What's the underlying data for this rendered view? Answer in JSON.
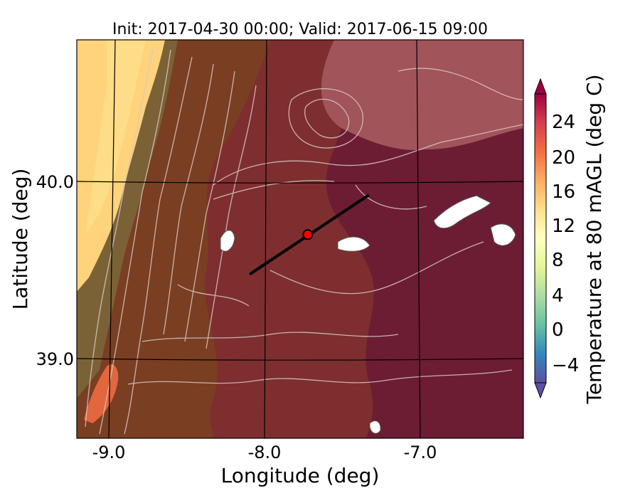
{
  "figure": {
    "title": "Init: 2017-04-30 00:00; Valid: 2017-06-15 09:00",
    "xlabel": "Longitude (deg)",
    "ylabel": "Latitude (deg)",
    "x_ticks": [
      "-9.0",
      "-8.0",
      "-7.0"
    ],
    "y_ticks": [
      "40.0",
      "39.0"
    ],
    "colorbar_label": "Temperature at 80 mAGL (deg C)",
    "colorbar_ticks": [
      "24",
      "20",
      "16",
      "12",
      "8",
      "4",
      "0",
      "−4"
    ]
  },
  "map_data": {
    "type": "filled-contour-map",
    "variable": "Temperature at 80 mAGL",
    "units": "deg C",
    "lon_range": [
      -9.25,
      -6.35
    ],
    "lat_range": [
      38.55,
      40.8
    ],
    "graticule_lon": [
      -9.0,
      -8.0,
      -7.0
    ],
    "graticule_lat": [
      40.0,
      39.0
    ],
    "color_range": [
      -6,
      28
    ],
    "colorbar_extend": "both",
    "marker": {
      "lon": -7.75,
      "lat": 39.7,
      "color": "#ff0000"
    },
    "transect": {
      "start": {
        "lon": -8.12,
        "lat": 39.48
      },
      "end": {
        "lon": -7.36,
        "lat": 39.92
      }
    }
  }
}
